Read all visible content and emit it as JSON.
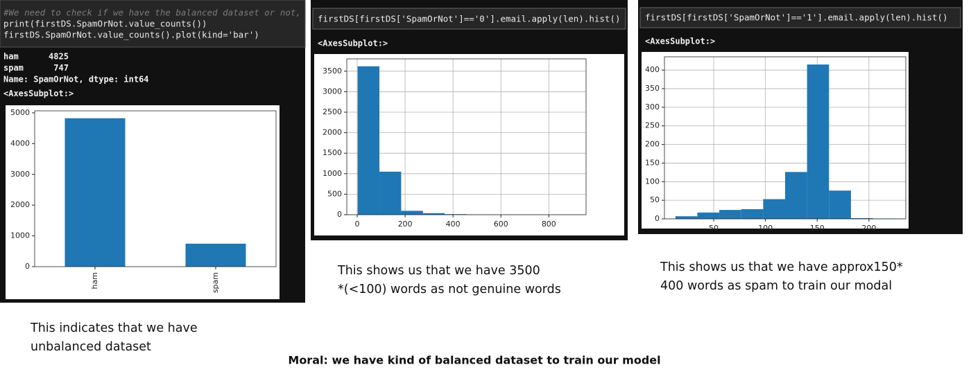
{
  "panels": [
    {
      "code": [
        "#We need to check if we have the balanced dataset or not,",
        "print(firstDS.SpamOrNot.value_counts())",
        "firstDS.SpamOrNot.value_counts().plot(kind='bar')"
      ],
      "output": [
        "ham      4825",
        "spam      747",
        "Name: SpamOrNot, dtype: int64",
        "<AxesSubplot:>"
      ]
    },
    {
      "code": [
        "firstDS[firstDS['SpamOrNot']=='0'].email.apply(len).hist()"
      ],
      "output": [
        "<AxesSubplot:>"
      ]
    },
    {
      "code": [
        "firstDS[firstDS['SpamOrNot']=='1'].email.apply(len).hist()"
      ],
      "output": [
        "<AxesSubplot:>"
      ]
    }
  ],
  "chart_data": [
    {
      "type": "bar",
      "categories": [
        "ham",
        "spam"
      ],
      "values": [
        4825,
        747
      ],
      "color": "#1f77b4",
      "ylim": [
        0,
        5066.25
      ],
      "yticks": [
        0,
        1000,
        2000,
        3000,
        4000,
        5000
      ],
      "grid": false
    },
    {
      "type": "histogram",
      "bins": [
        2,
        92.8,
        183.6,
        274.4,
        365.2,
        456,
        546.8,
        637.6,
        728.4,
        819.2,
        910
      ],
      "values": [
        3620,
        1050,
        95,
        38,
        14,
        4,
        2,
        0,
        1,
        1
      ],
      "color": "#1f77b4",
      "xlim": [
        -43.4,
        955.4
      ],
      "xticks": [
        0,
        200,
        400,
        600,
        800
      ],
      "ylim": [
        0,
        3801
      ],
      "yticks": [
        0,
        500,
        1000,
        1500,
        2000,
        2500,
        3000,
        3500
      ],
      "grid": true
    },
    {
      "type": "histogram",
      "bins": [
        13,
        34.2,
        55.4,
        76.6,
        97.8,
        119,
        140.2,
        161.4,
        182.6,
        203.8,
        225
      ],
      "values": [
        7,
        17,
        24,
        26,
        53,
        126,
        415,
        76,
        2,
        1
      ],
      "color": "#1f77b4",
      "xlim": [
        2.4,
        235.6
      ],
      "xticks": [
        50,
        100,
        150,
        200
      ],
      "ylim": [
        0,
        435.75
      ],
      "yticks": [
        0,
        50,
        100,
        150,
        200,
        250,
        300,
        350,
        400
      ],
      "grid": true
    }
  ],
  "captions": [
    [
      "This indicates that we have",
      "unbalanced dataset"
    ],
    [
      "This shows us that we have 3500",
      "*(<100) words as not genuine words"
    ],
    [
      "This shows us that we have approx150*",
      "400 words as spam to train our modal"
    ]
  ],
  "moral": "Moral: we have kind of balanced dataset to train our model"
}
